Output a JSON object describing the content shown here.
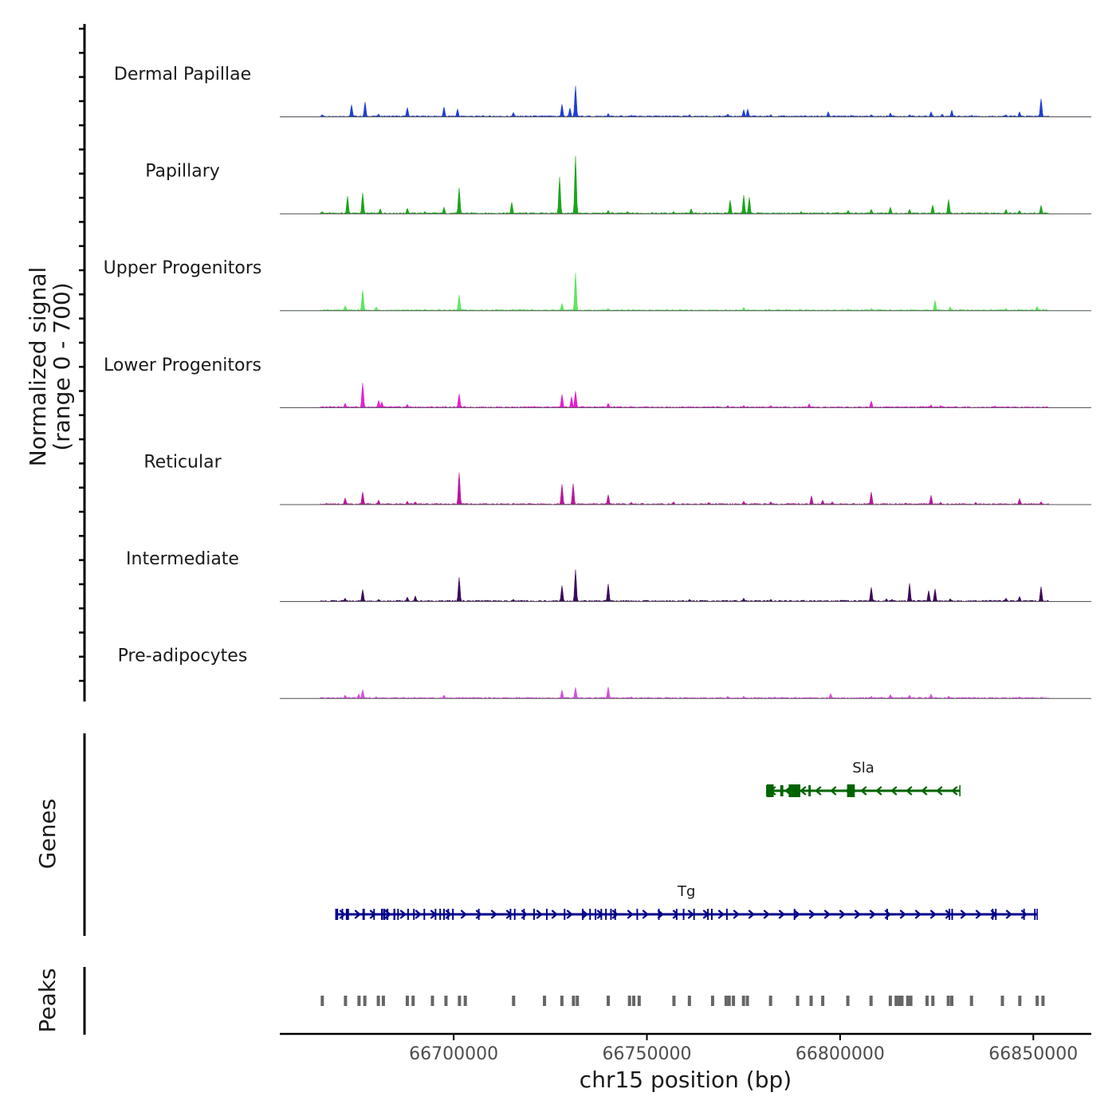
{
  "chart_data": {
    "type": "area",
    "title": "",
    "x": {
      "chrom": "chr15",
      "range": [
        66655000,
        66865000
      ],
      "ticks": [
        66700000,
        66750000,
        66800000,
        66850000
      ],
      "tick_labels": [
        "66700000",
        "66750000",
        "66800000",
        "66850000"
      ],
      "label": "chr15 position (bp)"
    },
    "y": {
      "label_line1": "Normalized signal",
      "label_line2": "(range 0 - 700)",
      "range": [
        0,
        700
      ]
    },
    "tracks": [
      {
        "name": "Dermal Papillae",
        "color": "#1f3fd6",
        "peaks": [
          [
            66666000,
            40
          ],
          [
            66673500,
            220
          ],
          [
            66677000,
            270
          ],
          [
            66680500,
            50
          ],
          [
            66688000,
            170
          ],
          [
            66697500,
            180
          ],
          [
            66701000,
            140
          ],
          [
            66715500,
            80
          ],
          [
            66728000,
            230
          ],
          [
            66730000,
            160
          ],
          [
            66731500,
            560
          ],
          [
            66740000,
            60
          ],
          [
            66746000,
            30
          ],
          [
            66761000,
            40
          ],
          [
            66771000,
            50
          ],
          [
            66775000,
            130
          ],
          [
            66776000,
            140
          ],
          [
            66782000,
            40
          ],
          [
            66797000,
            90
          ],
          [
            66803000,
            30
          ],
          [
            66808000,
            40
          ],
          [
            66813000,
            70
          ],
          [
            66818000,
            40
          ],
          [
            66823500,
            90
          ],
          [
            66826500,
            50
          ],
          [
            66829000,
            120
          ],
          [
            66834000,
            30
          ],
          [
            66843000,
            40
          ],
          [
            66846500,
            90
          ],
          [
            66852000,
            330
          ]
        ]
      },
      {
        "name": "Papillary",
        "color": "#19a619",
        "peaks": [
          [
            66666000,
            40
          ],
          [
            66672500,
            320
          ],
          [
            66676500,
            380
          ],
          [
            66681000,
            90
          ],
          [
            66688000,
            100
          ],
          [
            66692500,
            40
          ],
          [
            66697500,
            120
          ],
          [
            66701500,
            470
          ],
          [
            66715000,
            210
          ],
          [
            66727500,
            670
          ],
          [
            66731500,
            1050
          ],
          [
            66740000,
            60
          ],
          [
            66745000,
            40
          ],
          [
            66757000,
            40
          ],
          [
            66761500,
            90
          ],
          [
            66771500,
            250
          ],
          [
            66775000,
            340
          ],
          [
            66776500,
            300
          ],
          [
            66790000,
            40
          ],
          [
            66802000,
            60
          ],
          [
            66808000,
            80
          ],
          [
            66813000,
            120
          ],
          [
            66818000,
            80
          ],
          [
            66824000,
            160
          ],
          [
            66828000,
            260
          ],
          [
            66843000,
            80
          ],
          [
            66846500,
            60
          ],
          [
            66852000,
            150
          ]
        ]
      },
      {
        "name": "Upper Progenitors",
        "color": "#5ee65e",
        "peaks": [
          [
            66672000,
            90
          ],
          [
            66676500,
            380
          ],
          [
            66680000,
            70
          ],
          [
            66701500,
            290
          ],
          [
            66728000,
            130
          ],
          [
            66731500,
            690
          ],
          [
            66740000,
            40
          ],
          [
            66775000,
            60
          ],
          [
            66802000,
            30
          ],
          [
            66808000,
            40
          ],
          [
            66824500,
            190
          ],
          [
            66828500,
            70
          ],
          [
            66843000,
            40
          ],
          [
            66851000,
            80
          ]
        ]
      },
      {
        "name": "Lower Progenitors",
        "color": "#e61ed2",
        "peaks": [
          [
            66672000,
            80
          ],
          [
            66676500,
            450
          ],
          [
            66680500,
            130
          ],
          [
            66681500,
            100
          ],
          [
            66688000,
            60
          ],
          [
            66701500,
            250
          ],
          [
            66728000,
            240
          ],
          [
            66730500,
            200
          ],
          [
            66731500,
            300
          ],
          [
            66740000,
            80
          ],
          [
            66771000,
            40
          ],
          [
            66775000,
            40
          ],
          [
            66782000,
            40
          ],
          [
            66792000,
            70
          ],
          [
            66808000,
            120
          ],
          [
            66823500,
            50
          ],
          [
            66826000,
            40
          ],
          [
            66840000,
            30
          ]
        ]
      },
      {
        "name": "Reticular",
        "color": "#b8179a",
        "peaks": [
          [
            66672000,
            120
          ],
          [
            66676500,
            230
          ],
          [
            66680500,
            80
          ],
          [
            66688000,
            60
          ],
          [
            66690000,
            50
          ],
          [
            66701500,
            580
          ],
          [
            66728000,
            370
          ],
          [
            66731000,
            380
          ],
          [
            66740000,
            180
          ],
          [
            66746000,
            40
          ],
          [
            66757000,
            50
          ],
          [
            66766000,
            40
          ],
          [
            66775000,
            60
          ],
          [
            66782000,
            50
          ],
          [
            66792500,
            160
          ],
          [
            66795500,
            80
          ],
          [
            66798000,
            50
          ],
          [
            66808000,
            230
          ],
          [
            66817000,
            30
          ],
          [
            66823500,
            170
          ],
          [
            66826000,
            40
          ],
          [
            66835000,
            40
          ],
          [
            66846500,
            110
          ],
          [
            66852000,
            50
          ]
        ]
      },
      {
        "name": "Intermediate",
        "color": "#3d0a5c",
        "peaks": [
          [
            66672000,
            60
          ],
          [
            66676500,
            220
          ],
          [
            66680500,
            40
          ],
          [
            66688000,
            80
          ],
          [
            66690000,
            100
          ],
          [
            66701500,
            440
          ],
          [
            66715500,
            40
          ],
          [
            66728000,
            290
          ],
          [
            66731500,
            580
          ],
          [
            66740000,
            320
          ],
          [
            66761000,
            40
          ],
          [
            66775000,
            60
          ],
          [
            66782000,
            40
          ],
          [
            66808000,
            260
          ],
          [
            66812000,
            50
          ],
          [
            66813500,
            40
          ],
          [
            66818000,
            330
          ],
          [
            66823000,
            200
          ],
          [
            66824500,
            230
          ],
          [
            66828500,
            50
          ],
          [
            66843000,
            60
          ],
          [
            66846500,
            90
          ],
          [
            66852000,
            270
          ]
        ]
      },
      {
        "name": "Pre-adipocytes",
        "color": "#d94fe0",
        "peaks": [
          [
            66672000,
            60
          ],
          [
            66675500,
            80
          ],
          [
            66676500,
            160
          ],
          [
            66680000,
            30
          ],
          [
            66697500,
            60
          ],
          [
            66728000,
            150
          ],
          [
            66731500,
            200
          ],
          [
            66740000,
            210
          ],
          [
            66746000,
            30
          ],
          [
            66771000,
            40
          ],
          [
            66775000,
            40
          ],
          [
            66797500,
            90
          ],
          [
            66808000,
            40
          ],
          [
            66813000,
            70
          ],
          [
            66818000,
            60
          ],
          [
            66823500,
            80
          ],
          [
            66828000,
            40
          ],
          [
            66846500,
            30
          ]
        ]
      }
    ],
    "genes": [
      {
        "name": "Sla",
        "strand": "-",
        "color": "#006400",
        "start": 66781000,
        "end": 66831000,
        "exons": [
          [
            66781000,
            66782800
          ],
          [
            66784500,
            66785300
          ],
          [
            66786700,
            66789700
          ],
          [
            66791800,
            66792400
          ],
          [
            66801800,
            66803800
          ]
        ]
      },
      {
        "name": "Tg",
        "strand": "+",
        "color": "#00008b",
        "start": 66669500,
        "end": 66851000,
        "exons": [
          [
            66669500,
            66670100
          ],
          [
            66671000,
            66671400
          ],
          [
            66672100,
            66672900
          ],
          [
            66676400,
            66677000
          ],
          [
            66679200,
            66679600
          ],
          [
            66681200,
            66681600
          ],
          [
            66681700,
            66682300
          ],
          [
            66682600,
            66683100
          ],
          [
            66684400,
            66684900
          ],
          [
            66685400,
            66685800
          ],
          [
            66688000,
            66688400
          ],
          [
            66689500,
            66689900
          ],
          [
            66692200,
            66692600
          ],
          [
            66695100,
            66695500
          ],
          [
            66696300,
            66696700
          ],
          [
            66697300,
            66697700
          ],
          [
            66698400,
            66698800
          ],
          [
            66699600,
            66700000
          ],
          [
            66706300,
            66706700
          ],
          [
            66714500,
            66714900
          ],
          [
            66715600,
            66716000
          ],
          [
            66718000,
            66718400
          ],
          [
            66720600,
            66721000
          ],
          [
            66723900,
            66724300
          ],
          [
            66728500,
            66728900
          ],
          [
            66733200,
            66733600
          ],
          [
            66735100,
            66735500
          ],
          [
            66736500,
            66736900
          ],
          [
            66738000,
            66738400
          ],
          [
            66739200,
            66739600
          ],
          [
            66740500,
            66740900
          ],
          [
            66741600,
            66742000
          ],
          [
            66747300,
            66747700
          ],
          [
            66752900,
            66753300
          ],
          [
            66757500,
            66757900
          ],
          [
            66759300,
            66759700
          ],
          [
            66762000,
            66762400
          ],
          [
            66765600,
            66766000
          ],
          [
            66766600,
            66767000
          ],
          [
            66770500,
            66770900
          ],
          [
            66788000,
            66788400
          ],
          [
            66812000,
            66812400
          ],
          [
            66828100,
            66828500
          ],
          [
            66828800,
            66829200
          ],
          [
            66839300,
            66839700
          ],
          [
            66840100,
            66840500
          ],
          [
            66847400,
            66847800
          ],
          [
            66850200,
            66850600
          ]
        ]
      }
    ],
    "peaks_track": {
      "label": "Peaks",
      "color": "#666666",
      "positions": [
        66666000,
        66672000,
        66675500,
        66677000,
        66680500,
        66681800,
        66688000,
        66689500,
        66694500,
        66698000,
        66701500,
        66703000,
        66715500,
        66723500,
        66728000,
        66731000,
        66732000,
        66740000,
        66745500,
        66746600,
        66748000,
        66757000,
        66761000,
        66767000,
        66770500,
        66771300,
        66772400,
        66775000,
        66776000,
        66782000,
        66789000,
        66792500,
        66795500,
        66802000,
        66808000,
        66813000,
        66814500,
        66815300,
        66816000,
        66817500,
        66818300,
        66822500,
        66824000,
        66828000,
        66828900,
        66834000,
        66842000,
        66846500,
        66851000,
        66852500
      ]
    },
    "panel_labels": {
      "genes": "Genes",
      "peaks": "Peaks"
    }
  }
}
